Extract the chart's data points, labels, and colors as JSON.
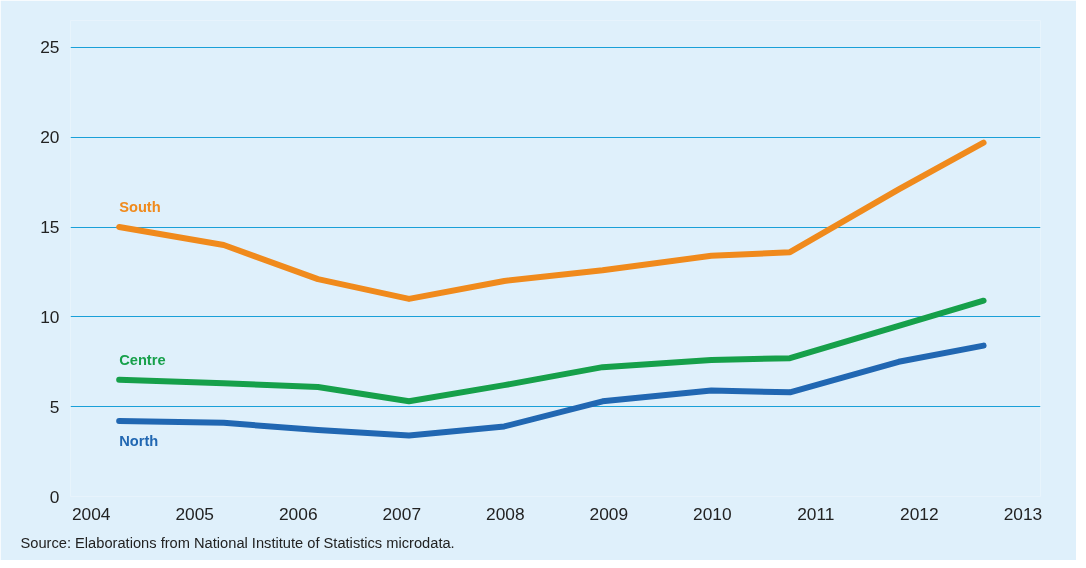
{
  "chart_data": {
    "type": "line",
    "x": [
      2004.27,
      2005.28,
      2006.19,
      2007.07,
      2007.99,
      2008.94,
      2009.99,
      2010.75,
      2011.8,
      2012.62
    ],
    "series": [
      {
        "name": "South",
        "color": "#f08a1c",
        "values": [
          15.0,
          14.0,
          12.1,
          11.0,
          12.0,
          12.6,
          13.4,
          13.6,
          17.1,
          19.7
        ]
      },
      {
        "name": "Centre",
        "color": "#16a04a",
        "values": [
          6.5,
          6.3,
          6.1,
          5.3,
          6.2,
          7.2,
          7.6,
          7.7,
          9.5,
          10.9
        ]
      },
      {
        "name": "North",
        "color": "#2167b2",
        "values": [
          4.2,
          4.1,
          3.7,
          3.4,
          3.9,
          5.3,
          5.9,
          5.8,
          7.5,
          8.4
        ]
      }
    ],
    "xlim": [
      2003.8,
      2013.17
    ],
    "ylim": [
      0,
      26.5
    ],
    "xticks": [
      2004,
      2005,
      2006,
      2007,
      2008,
      2009,
      2010,
      2011,
      2012,
      2013
    ],
    "yticks": [
      0,
      5,
      10,
      15,
      20,
      25
    ],
    "grid": "y",
    "marker": "none",
    "line_style": "solid",
    "annotations": [
      "Source: Elaborations from National Institute of Statistics microdata."
    ]
  }
}
